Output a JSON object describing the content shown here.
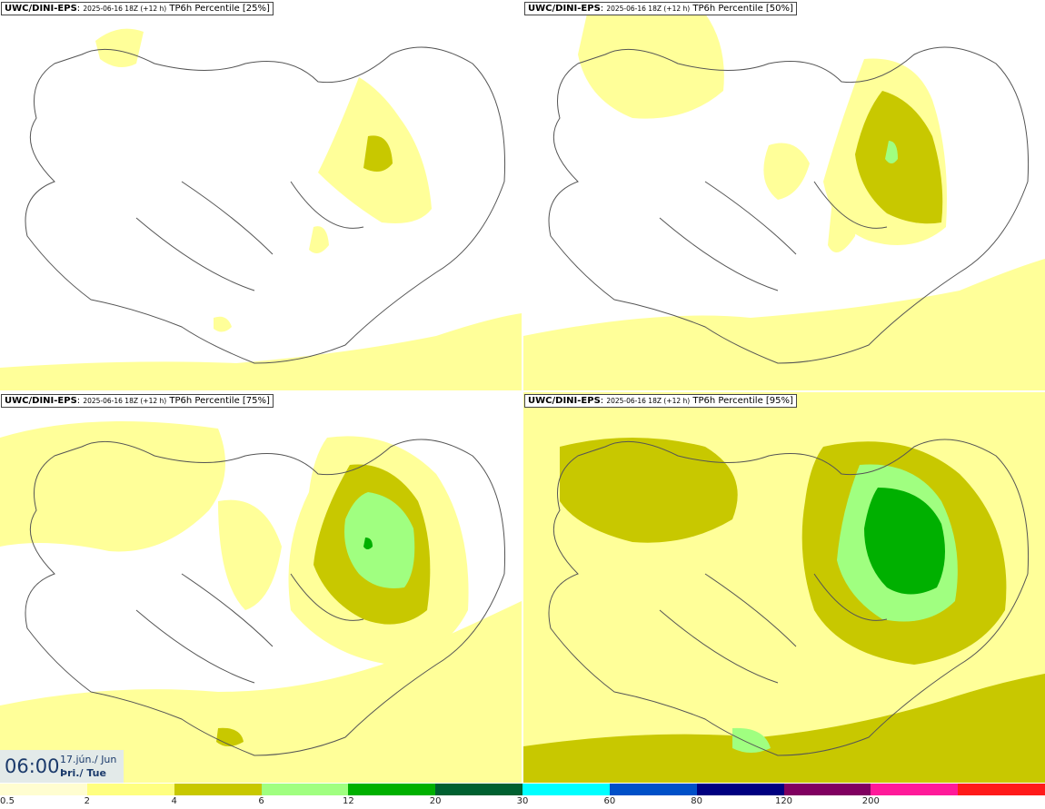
{
  "panels": [
    {
      "model": "UWC/DINI-EPS",
      "run": "2025-06-16 18Z (+12 h)",
      "product": "TP6h Percentile [25%]"
    },
    {
      "model": "UWC/DINI-EPS",
      "run": "2025-06-16 18Z (+12 h)",
      "product": "TP6h Percentile [50%]"
    },
    {
      "model": "UWC/DINI-EPS",
      "run": "2025-06-16 18Z (+12 h)",
      "product": "TP6h Percentile [75%]"
    },
    {
      "model": "UWC/DINI-EPS",
      "run": "2025-06-16 18Z (+12 h)",
      "product": "TP6h Percentile [95%]"
    }
  ],
  "valid_time": {
    "time": "06:00",
    "date_line": "17.jún./ Jun",
    "day_line": "Þri./ Tue"
  },
  "legend": {
    "bins": [
      {
        "color": "#fffdd0"
      },
      {
        "color": "#ffff80"
      },
      {
        "color": "#c8c800"
      },
      {
        "color": "#a0ff80"
      },
      {
        "color": "#00b000"
      },
      {
        "color": "#006030"
      },
      {
        "color": "#00ffff"
      },
      {
        "color": "#0050c8"
      },
      {
        "color": "#000080"
      },
      {
        "color": "#800060"
      },
      {
        "color": "#ff1a9a"
      },
      {
        "color": "#ff1a1a"
      }
    ],
    "labels": [
      "0.5",
      "2",
      "4",
      "6",
      "12",
      "20",
      "30",
      "60",
      "80",
      "120",
      "200"
    ]
  },
  "colors": {
    "light_yellow": "#ffff99",
    "olive": "#c8c800",
    "light_green": "#a0ff80",
    "green": "#00b000",
    "coastline": "#555555"
  }
}
